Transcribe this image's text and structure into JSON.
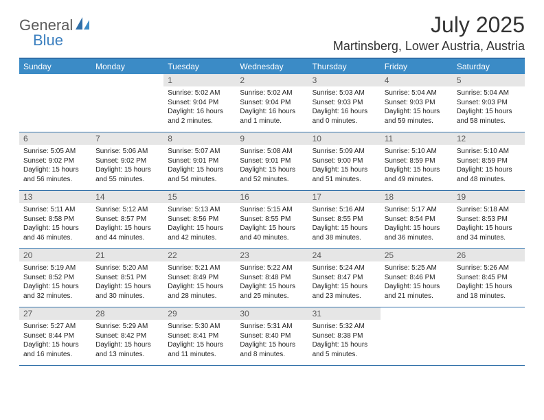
{
  "logo": {
    "word1": "General",
    "word2": "Blue"
  },
  "title": "July 2025",
  "location": "Martinsberg, Lower Austria, Austria",
  "colors": {
    "header_bar": "#3b8bc6",
    "rule": "#2f6fa8",
    "daynum_bg": "#e6e6e6",
    "daynum_fg": "#595959",
    "logo_gray": "#5b5b5b",
    "logo_blue": "#3b7fbf"
  },
  "days_of_week": [
    "Sunday",
    "Monday",
    "Tuesday",
    "Wednesday",
    "Thursday",
    "Friday",
    "Saturday"
  ],
  "weeks": [
    [
      {
        "n": "",
        "sr": "",
        "ss": "",
        "dl": ""
      },
      {
        "n": "",
        "sr": "",
        "ss": "",
        "dl": ""
      },
      {
        "n": "1",
        "sr": "Sunrise: 5:02 AM",
        "ss": "Sunset: 9:04 PM",
        "dl": "Daylight: 16 hours and 2 minutes."
      },
      {
        "n": "2",
        "sr": "Sunrise: 5:02 AM",
        "ss": "Sunset: 9:04 PM",
        "dl": "Daylight: 16 hours and 1 minute."
      },
      {
        "n": "3",
        "sr": "Sunrise: 5:03 AM",
        "ss": "Sunset: 9:03 PM",
        "dl": "Daylight: 16 hours and 0 minutes."
      },
      {
        "n": "4",
        "sr": "Sunrise: 5:04 AM",
        "ss": "Sunset: 9:03 PM",
        "dl": "Daylight: 15 hours and 59 minutes."
      },
      {
        "n": "5",
        "sr": "Sunrise: 5:04 AM",
        "ss": "Sunset: 9:03 PM",
        "dl": "Daylight: 15 hours and 58 minutes."
      }
    ],
    [
      {
        "n": "6",
        "sr": "Sunrise: 5:05 AM",
        "ss": "Sunset: 9:02 PM",
        "dl": "Daylight: 15 hours and 56 minutes."
      },
      {
        "n": "7",
        "sr": "Sunrise: 5:06 AM",
        "ss": "Sunset: 9:02 PM",
        "dl": "Daylight: 15 hours and 55 minutes."
      },
      {
        "n": "8",
        "sr": "Sunrise: 5:07 AM",
        "ss": "Sunset: 9:01 PM",
        "dl": "Daylight: 15 hours and 54 minutes."
      },
      {
        "n": "9",
        "sr": "Sunrise: 5:08 AM",
        "ss": "Sunset: 9:01 PM",
        "dl": "Daylight: 15 hours and 52 minutes."
      },
      {
        "n": "10",
        "sr": "Sunrise: 5:09 AM",
        "ss": "Sunset: 9:00 PM",
        "dl": "Daylight: 15 hours and 51 minutes."
      },
      {
        "n": "11",
        "sr": "Sunrise: 5:10 AM",
        "ss": "Sunset: 8:59 PM",
        "dl": "Daylight: 15 hours and 49 minutes."
      },
      {
        "n": "12",
        "sr": "Sunrise: 5:10 AM",
        "ss": "Sunset: 8:59 PM",
        "dl": "Daylight: 15 hours and 48 minutes."
      }
    ],
    [
      {
        "n": "13",
        "sr": "Sunrise: 5:11 AM",
        "ss": "Sunset: 8:58 PM",
        "dl": "Daylight: 15 hours and 46 minutes."
      },
      {
        "n": "14",
        "sr": "Sunrise: 5:12 AM",
        "ss": "Sunset: 8:57 PM",
        "dl": "Daylight: 15 hours and 44 minutes."
      },
      {
        "n": "15",
        "sr": "Sunrise: 5:13 AM",
        "ss": "Sunset: 8:56 PM",
        "dl": "Daylight: 15 hours and 42 minutes."
      },
      {
        "n": "16",
        "sr": "Sunrise: 5:15 AM",
        "ss": "Sunset: 8:55 PM",
        "dl": "Daylight: 15 hours and 40 minutes."
      },
      {
        "n": "17",
        "sr": "Sunrise: 5:16 AM",
        "ss": "Sunset: 8:55 PM",
        "dl": "Daylight: 15 hours and 38 minutes."
      },
      {
        "n": "18",
        "sr": "Sunrise: 5:17 AM",
        "ss": "Sunset: 8:54 PM",
        "dl": "Daylight: 15 hours and 36 minutes."
      },
      {
        "n": "19",
        "sr": "Sunrise: 5:18 AM",
        "ss": "Sunset: 8:53 PM",
        "dl": "Daylight: 15 hours and 34 minutes."
      }
    ],
    [
      {
        "n": "20",
        "sr": "Sunrise: 5:19 AM",
        "ss": "Sunset: 8:52 PM",
        "dl": "Daylight: 15 hours and 32 minutes."
      },
      {
        "n": "21",
        "sr": "Sunrise: 5:20 AM",
        "ss": "Sunset: 8:51 PM",
        "dl": "Daylight: 15 hours and 30 minutes."
      },
      {
        "n": "22",
        "sr": "Sunrise: 5:21 AM",
        "ss": "Sunset: 8:49 PM",
        "dl": "Daylight: 15 hours and 28 minutes."
      },
      {
        "n": "23",
        "sr": "Sunrise: 5:22 AM",
        "ss": "Sunset: 8:48 PM",
        "dl": "Daylight: 15 hours and 25 minutes."
      },
      {
        "n": "24",
        "sr": "Sunrise: 5:24 AM",
        "ss": "Sunset: 8:47 PM",
        "dl": "Daylight: 15 hours and 23 minutes."
      },
      {
        "n": "25",
        "sr": "Sunrise: 5:25 AM",
        "ss": "Sunset: 8:46 PM",
        "dl": "Daylight: 15 hours and 21 minutes."
      },
      {
        "n": "26",
        "sr": "Sunrise: 5:26 AM",
        "ss": "Sunset: 8:45 PM",
        "dl": "Daylight: 15 hours and 18 minutes."
      }
    ],
    [
      {
        "n": "27",
        "sr": "Sunrise: 5:27 AM",
        "ss": "Sunset: 8:44 PM",
        "dl": "Daylight: 15 hours and 16 minutes."
      },
      {
        "n": "28",
        "sr": "Sunrise: 5:29 AM",
        "ss": "Sunset: 8:42 PM",
        "dl": "Daylight: 15 hours and 13 minutes."
      },
      {
        "n": "29",
        "sr": "Sunrise: 5:30 AM",
        "ss": "Sunset: 8:41 PM",
        "dl": "Daylight: 15 hours and 11 minutes."
      },
      {
        "n": "30",
        "sr": "Sunrise: 5:31 AM",
        "ss": "Sunset: 8:40 PM",
        "dl": "Daylight: 15 hours and 8 minutes."
      },
      {
        "n": "31",
        "sr": "Sunrise: 5:32 AM",
        "ss": "Sunset: 8:38 PM",
        "dl": "Daylight: 15 hours and 5 minutes."
      },
      {
        "n": "",
        "sr": "",
        "ss": "",
        "dl": ""
      },
      {
        "n": "",
        "sr": "",
        "ss": "",
        "dl": ""
      }
    ]
  ]
}
